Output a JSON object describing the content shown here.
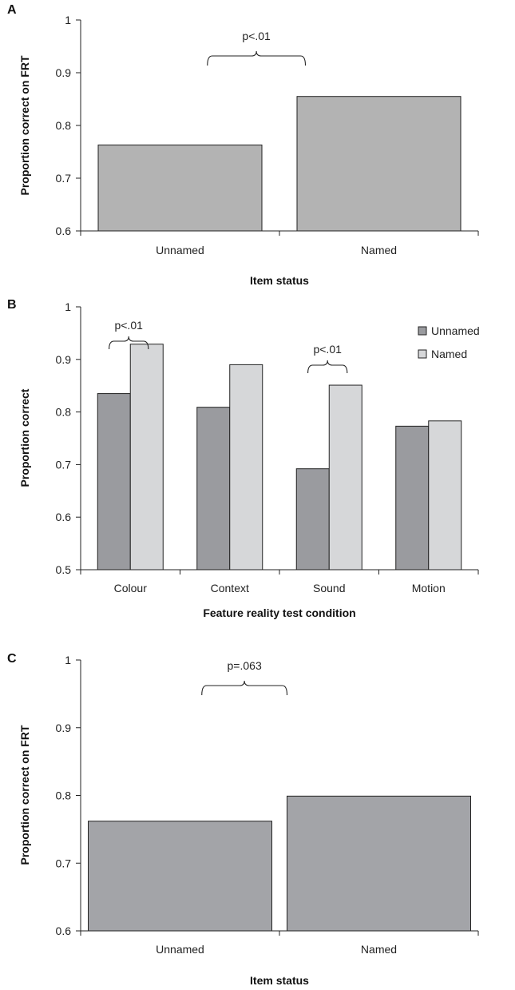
{
  "chart_data": [
    {
      "panel": "A",
      "type": "bar",
      "categories": [
        "Unnamed",
        "Named"
      ],
      "values": [
        0.763,
        0.855
      ],
      "xlabel": "Item status",
      "ylabel": "Proportion correct on FRT",
      "ylim": [
        0.6,
        1
      ],
      "yticks": [
        "0.6",
        "0.7",
        "0.8",
        "0.9",
        "1"
      ],
      "bar_color": "#b3b3b3",
      "annotations": [
        {
          "text": "p<.01",
          "between": [
            "Unnamed",
            "Named"
          ]
        }
      ],
      "grid": false
    },
    {
      "panel": "B",
      "type": "bar",
      "categories": [
        "Colour",
        "Context",
        "Sound",
        "Motion"
      ],
      "series": [
        {
          "name": "Unnamed",
          "values": [
            0.835,
            0.809,
            0.692,
            0.773
          ],
          "color": "#9a9b9f"
        },
        {
          "name": "Named",
          "values": [
            0.929,
            0.89,
            0.851,
            0.783
          ],
          "color": "#d6d7d9"
        }
      ],
      "xlabel": "Feature reality test condition",
      "ylabel": "Proportion correct",
      "ylim": [
        0.5,
        1
      ],
      "yticks": [
        "0.5",
        "0.6",
        "0.7",
        "0.8",
        "0.9",
        "1"
      ],
      "legend_position": "top-right",
      "annotations": [
        {
          "text": "p<.01",
          "category": "Colour"
        },
        {
          "text": "p<.01",
          "category": "Sound"
        }
      ],
      "grid": false
    },
    {
      "panel": "C",
      "type": "bar",
      "categories": [
        "Unnamed",
        "Named"
      ],
      "values": [
        0.762,
        0.799
      ],
      "xlabel": "Item status",
      "ylabel": "Proportion correct on FRT",
      "ylim": [
        0.6,
        1
      ],
      "yticks": [
        "0.6",
        "0.7",
        "0.8",
        "0.9",
        "1"
      ],
      "bar_color": "#a3a4a8",
      "annotations": [
        {
          "text": "p=.063",
          "between": [
            "Unnamed",
            "Named"
          ]
        }
      ],
      "grid": false
    }
  ]
}
